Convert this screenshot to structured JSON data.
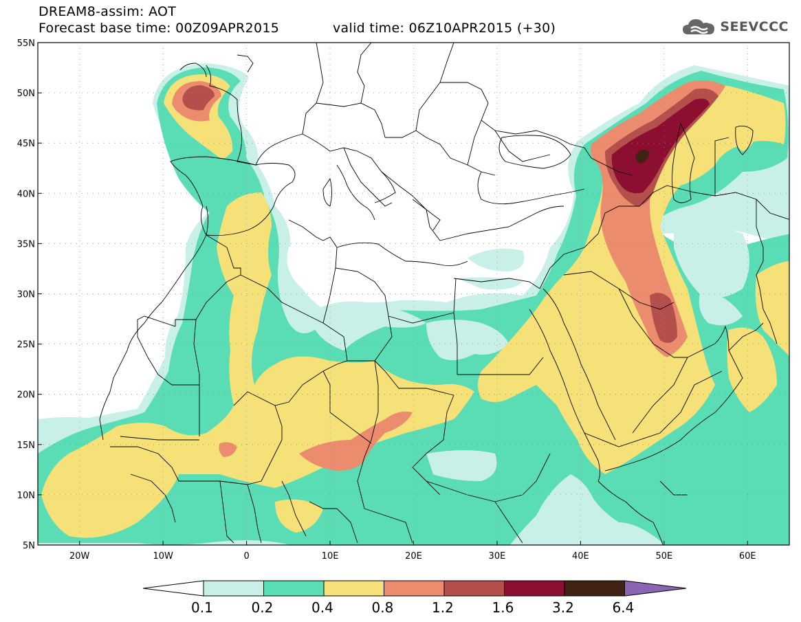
{
  "title": {
    "line1": "DREAM8-assim: AOT",
    "line2_left": "Forecast base time: 00Z09APR2015",
    "line2_right": "valid time: 06Z10APR2015 (+30)"
  },
  "logo": {
    "text": "SEEVCCC",
    "icon": "cloud-icon"
  },
  "map": {
    "lat_ticks": [
      "55N",
      "50N",
      "45N",
      "40N",
      "35N",
      "30N",
      "25N",
      "20N",
      "15N",
      "10N",
      "5N"
    ],
    "lon_ticks": [
      "20W",
      "10W",
      "0",
      "10E",
      "20E",
      "30E",
      "40E",
      "50E",
      "60E"
    ],
    "lon_range": [
      -25,
      65
    ],
    "lat_range": [
      5,
      55
    ]
  },
  "colorbar": {
    "labels": [
      "0.1",
      "0.2",
      "0.4",
      "0.8",
      "1.2",
      "1.6",
      "3.2",
      "6.4"
    ],
    "colors": [
      "#c8f0e8",
      "#5adcb4",
      "#f5e178",
      "#eb8c6e",
      "#b4504b",
      "#8c0f32",
      "#412314",
      "#8c64b4"
    ],
    "min_arrow_color": "#ffffff"
  },
  "palette": {
    "c01": "#c8f0e8",
    "c02": "#5adcb4",
    "c04": "#f5e178",
    "c08": "#eb8c6e",
    "c12": "#b4504b",
    "c16": "#8c0f32",
    "c32": "#412314"
  }
}
